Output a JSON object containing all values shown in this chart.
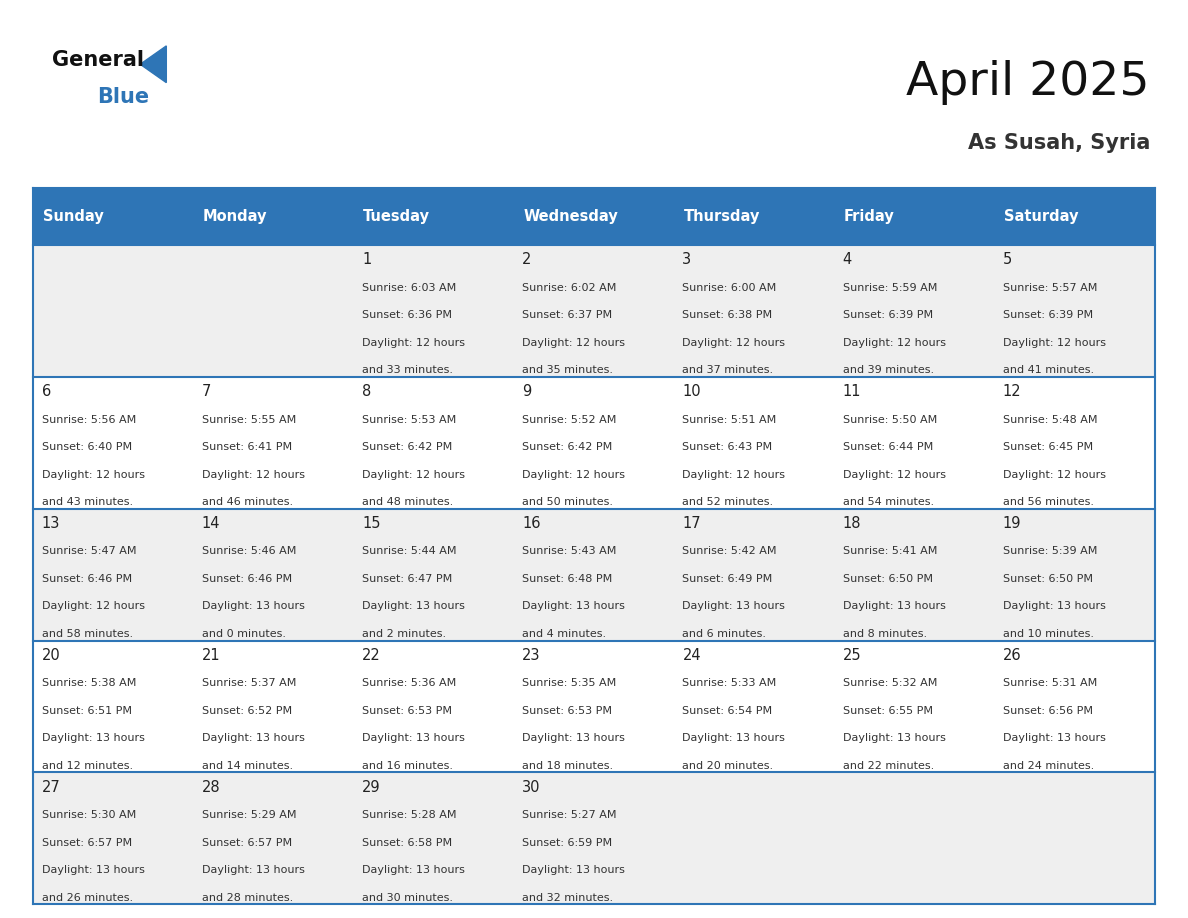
{
  "title": "April 2025",
  "subtitle": "As Susah, Syria",
  "header_color": "#2E75B6",
  "header_text_color": "#FFFFFF",
  "weekdays": [
    "Sunday",
    "Monday",
    "Tuesday",
    "Wednesday",
    "Thursday",
    "Friday",
    "Saturday"
  ],
  "cell_bg_row0": "#EFEFEF",
  "cell_bg_row1": "#FFFFFF",
  "cell_bg_row2": "#EFEFEF",
  "cell_bg_row3": "#FFFFFF",
  "cell_bg_row4": "#EFEFEF",
  "border_color": "#2E75B6",
  "days": [
    {
      "day": null,
      "col": 0,
      "row": 0
    },
    {
      "day": null,
      "col": 1,
      "row": 0
    },
    {
      "day": 1,
      "col": 2,
      "row": 0,
      "sunrise": "6:03 AM",
      "sunset": "6:36 PM",
      "daylight_h": "12 hours",
      "daylight_m": "and 33 minutes."
    },
    {
      "day": 2,
      "col": 3,
      "row": 0,
      "sunrise": "6:02 AM",
      "sunset": "6:37 PM",
      "daylight_h": "12 hours",
      "daylight_m": "and 35 minutes."
    },
    {
      "day": 3,
      "col": 4,
      "row": 0,
      "sunrise": "6:00 AM",
      "sunset": "6:38 PM",
      "daylight_h": "12 hours",
      "daylight_m": "and 37 minutes."
    },
    {
      "day": 4,
      "col": 5,
      "row": 0,
      "sunrise": "5:59 AM",
      "sunset": "6:39 PM",
      "daylight_h": "12 hours",
      "daylight_m": "and 39 minutes."
    },
    {
      "day": 5,
      "col": 6,
      "row": 0,
      "sunrise": "5:57 AM",
      "sunset": "6:39 PM",
      "daylight_h": "12 hours",
      "daylight_m": "and 41 minutes."
    },
    {
      "day": 6,
      "col": 0,
      "row": 1,
      "sunrise": "5:56 AM",
      "sunset": "6:40 PM",
      "daylight_h": "12 hours",
      "daylight_m": "and 43 minutes."
    },
    {
      "day": 7,
      "col": 1,
      "row": 1,
      "sunrise": "5:55 AM",
      "sunset": "6:41 PM",
      "daylight_h": "12 hours",
      "daylight_m": "and 46 minutes."
    },
    {
      "day": 8,
      "col": 2,
      "row": 1,
      "sunrise": "5:53 AM",
      "sunset": "6:42 PM",
      "daylight_h": "12 hours",
      "daylight_m": "and 48 minutes."
    },
    {
      "day": 9,
      "col": 3,
      "row": 1,
      "sunrise": "5:52 AM",
      "sunset": "6:42 PM",
      "daylight_h": "12 hours",
      "daylight_m": "and 50 minutes."
    },
    {
      "day": 10,
      "col": 4,
      "row": 1,
      "sunrise": "5:51 AM",
      "sunset": "6:43 PM",
      "daylight_h": "12 hours",
      "daylight_m": "and 52 minutes."
    },
    {
      "day": 11,
      "col": 5,
      "row": 1,
      "sunrise": "5:50 AM",
      "sunset": "6:44 PM",
      "daylight_h": "12 hours",
      "daylight_m": "and 54 minutes."
    },
    {
      "day": 12,
      "col": 6,
      "row": 1,
      "sunrise": "5:48 AM",
      "sunset": "6:45 PM",
      "daylight_h": "12 hours",
      "daylight_m": "and 56 minutes."
    },
    {
      "day": 13,
      "col": 0,
      "row": 2,
      "sunrise": "5:47 AM",
      "sunset": "6:46 PM",
      "daylight_h": "12 hours",
      "daylight_m": "and 58 minutes."
    },
    {
      "day": 14,
      "col": 1,
      "row": 2,
      "sunrise": "5:46 AM",
      "sunset": "6:46 PM",
      "daylight_h": "13 hours",
      "daylight_m": "and 0 minutes."
    },
    {
      "day": 15,
      "col": 2,
      "row": 2,
      "sunrise": "5:44 AM",
      "sunset": "6:47 PM",
      "daylight_h": "13 hours",
      "daylight_m": "and 2 minutes."
    },
    {
      "day": 16,
      "col": 3,
      "row": 2,
      "sunrise": "5:43 AM",
      "sunset": "6:48 PM",
      "daylight_h": "13 hours",
      "daylight_m": "and 4 minutes."
    },
    {
      "day": 17,
      "col": 4,
      "row": 2,
      "sunrise": "5:42 AM",
      "sunset": "6:49 PM",
      "daylight_h": "13 hours",
      "daylight_m": "and 6 minutes."
    },
    {
      "day": 18,
      "col": 5,
      "row": 2,
      "sunrise": "5:41 AM",
      "sunset": "6:50 PM",
      "daylight_h": "13 hours",
      "daylight_m": "and 8 minutes."
    },
    {
      "day": 19,
      "col": 6,
      "row": 2,
      "sunrise": "5:39 AM",
      "sunset": "6:50 PM",
      "daylight_h": "13 hours",
      "daylight_m": "and 10 minutes."
    },
    {
      "day": 20,
      "col": 0,
      "row": 3,
      "sunrise": "5:38 AM",
      "sunset": "6:51 PM",
      "daylight_h": "13 hours",
      "daylight_m": "and 12 minutes."
    },
    {
      "day": 21,
      "col": 1,
      "row": 3,
      "sunrise": "5:37 AM",
      "sunset": "6:52 PM",
      "daylight_h": "13 hours",
      "daylight_m": "and 14 minutes."
    },
    {
      "day": 22,
      "col": 2,
      "row": 3,
      "sunrise": "5:36 AM",
      "sunset": "6:53 PM",
      "daylight_h": "13 hours",
      "daylight_m": "and 16 minutes."
    },
    {
      "day": 23,
      "col": 3,
      "row": 3,
      "sunrise": "5:35 AM",
      "sunset": "6:53 PM",
      "daylight_h": "13 hours",
      "daylight_m": "and 18 minutes."
    },
    {
      "day": 24,
      "col": 4,
      "row": 3,
      "sunrise": "5:33 AM",
      "sunset": "6:54 PM",
      "daylight_h": "13 hours",
      "daylight_m": "and 20 minutes."
    },
    {
      "day": 25,
      "col": 5,
      "row": 3,
      "sunrise": "5:32 AM",
      "sunset": "6:55 PM",
      "daylight_h": "13 hours",
      "daylight_m": "and 22 minutes."
    },
    {
      "day": 26,
      "col": 6,
      "row": 3,
      "sunrise": "5:31 AM",
      "sunset": "6:56 PM",
      "daylight_h": "13 hours",
      "daylight_m": "and 24 minutes."
    },
    {
      "day": 27,
      "col": 0,
      "row": 4,
      "sunrise": "5:30 AM",
      "sunset": "6:57 PM",
      "daylight_h": "13 hours",
      "daylight_m": "and 26 minutes."
    },
    {
      "day": 28,
      "col": 1,
      "row": 4,
      "sunrise": "5:29 AM",
      "sunset": "6:57 PM",
      "daylight_h": "13 hours",
      "daylight_m": "and 28 minutes."
    },
    {
      "day": 29,
      "col": 2,
      "row": 4,
      "sunrise": "5:28 AM",
      "sunset": "6:58 PM",
      "daylight_h": "13 hours",
      "daylight_m": "and 30 minutes."
    },
    {
      "day": 30,
      "col": 3,
      "row": 4,
      "sunrise": "5:27 AM",
      "sunset": "6:59 PM",
      "daylight_h": "13 hours",
      "daylight_m": "and 32 minutes."
    },
    {
      "day": null,
      "col": 4,
      "row": 4
    },
    {
      "day": null,
      "col": 5,
      "row": 4
    },
    {
      "day": null,
      "col": 6,
      "row": 4
    }
  ]
}
